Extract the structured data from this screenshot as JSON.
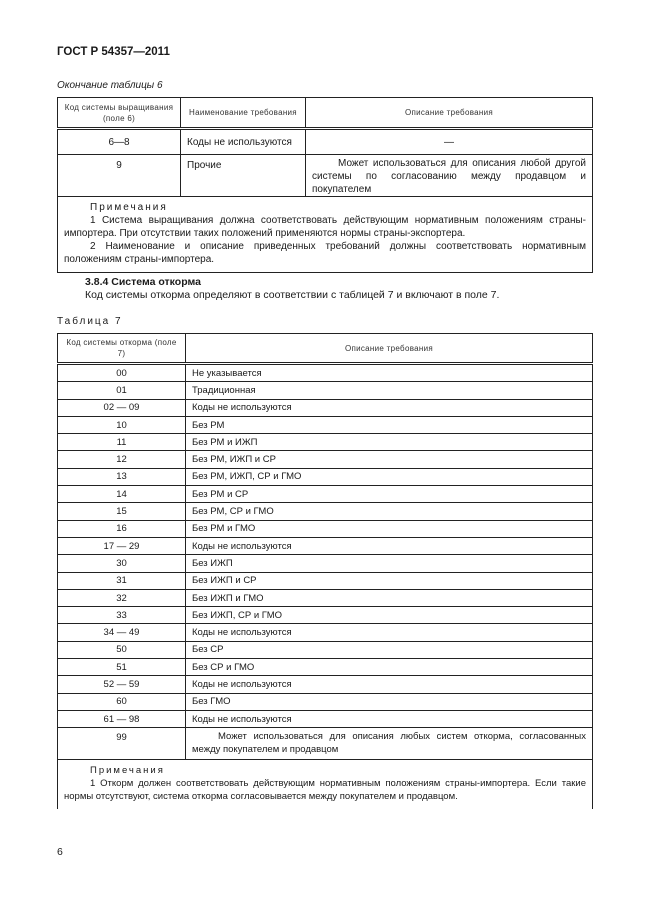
{
  "header": {
    "doc_code": "ГОСТ Р 54357—2011"
  },
  "table6": {
    "caption": "Окончание таблицы 6",
    "columns": [
      "Код системы выращивания (поле 6)",
      "Наименование требования",
      "Описание требования"
    ],
    "rows": [
      {
        "code": "6—8",
        "name": "Коды не используются",
        "desc": "—"
      },
      {
        "code": "9",
        "name": "Прочие",
        "desc": "Может использоваться для описания любой другой системы по согласованию между продавцом и покупателем"
      }
    ],
    "notes_title": "Примечания",
    "notes": [
      "1 Система выращивания должна соответствовать действующим нормативным положениям страны-импортера. При отсутствии таких положений применяются нормы страны-экспортера.",
      "2 Наименование и описание приведенных требований должны соответствовать нормативным положениям страны-импортера."
    ]
  },
  "section": {
    "title": "3.8.4 Система откорма",
    "text": "Код системы откорма определяют в соответствии с таблицей 7 и включают в поле 7."
  },
  "table7": {
    "caption": "Таблица 7",
    "columns": [
      "Код системы откорма (поле 7)",
      "Описание требования"
    ],
    "rows": [
      {
        "code": "00",
        "desc": "Не указывается"
      },
      {
        "code": "01",
        "desc": "Традиционная"
      },
      {
        "code": "02 — 09",
        "desc": "Коды не используются"
      },
      {
        "code": "10",
        "desc": "Без РМ"
      },
      {
        "code": "11",
        "desc": "Без РМ и ИЖП"
      },
      {
        "code": "12",
        "desc": "Без РМ, ИЖП и СР"
      },
      {
        "code": "13",
        "desc": "Без РМ, ИЖП, СР и ГМО"
      },
      {
        "code": "14",
        "desc": "Без РМ и СР"
      },
      {
        "code": "15",
        "desc": "Без РМ, СР и ГМО"
      },
      {
        "code": "16",
        "desc": "Без РМ и ГМО"
      },
      {
        "code": "17 — 29",
        "desc": "Коды не используются"
      },
      {
        "code": "30",
        "desc": "Без ИЖП"
      },
      {
        "code": "31",
        "desc": "Без ИЖП и СР"
      },
      {
        "code": "32",
        "desc": "Без ИЖП и ГМО"
      },
      {
        "code": "33",
        "desc": "Без ИЖП, СР и ГМО"
      },
      {
        "code": "34 — 49",
        "desc": "Коды не используются"
      },
      {
        "code": "50",
        "desc": "Без СР"
      },
      {
        "code": "51",
        "desc": "Без СР и ГМО"
      },
      {
        "code": "52 — 59",
        "desc": "Коды не используются"
      },
      {
        "code": "60",
        "desc": "Без ГМО"
      },
      {
        "code": "61 — 98",
        "desc": "Коды не используются"
      },
      {
        "code": "99",
        "desc": "Может использоваться для описания любых систем откорма, согласованных между покупателем и продавцом"
      }
    ],
    "notes_title": "Примечания",
    "notes": [
      "1 Откорм должен соответствовать действующим нормативным положениям страны-импортера. Если такие нормы отсутствуют, система откорма согласовывается между покупателем и продавцом."
    ]
  },
  "footer": {
    "page_number": "6"
  }
}
